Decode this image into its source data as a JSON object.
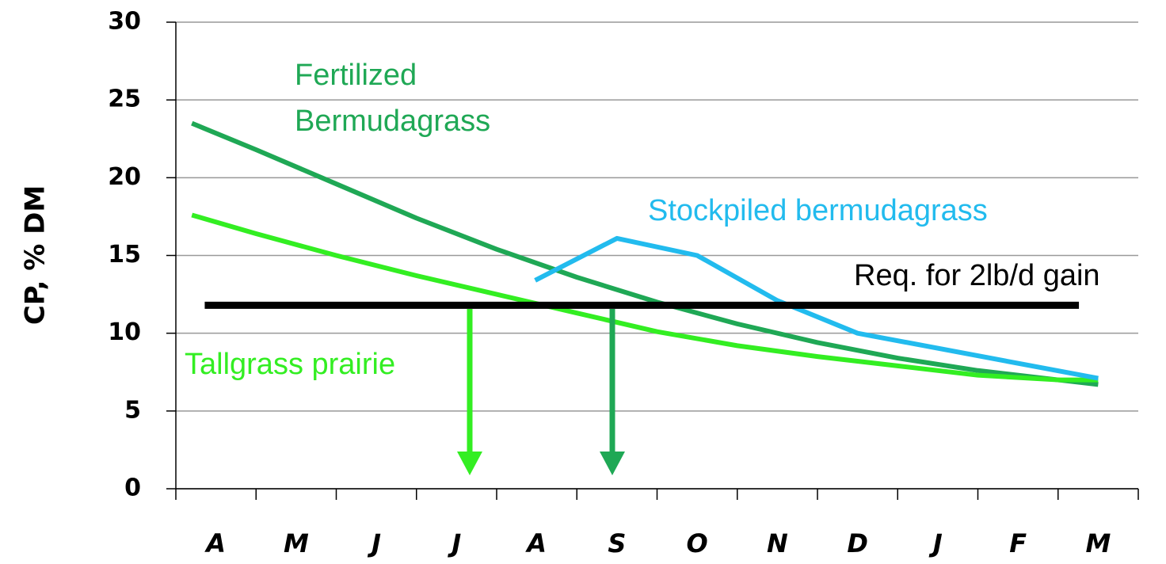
{
  "chart_data": {
    "type": "line",
    "y_label": "CP, % DM",
    "categories": [
      "A",
      "M",
      "J",
      "J",
      "A",
      "S",
      "O",
      "N",
      "D",
      "J",
      "F",
      "M"
    ],
    "xlim": [
      0,
      12
    ],
    "ylim": [
      0,
      30
    ],
    "yticks": [
      0,
      5,
      10,
      15,
      20,
      25,
      30
    ],
    "grid": true,
    "series": [
      {
        "color": "#1fa855",
        "x": [
          0.2,
          1,
          2,
          3,
          4,
          5,
          6,
          7,
          8,
          9,
          10,
          11,
          11.5
        ],
        "values": [
          23.5,
          21.8,
          19.6,
          17.4,
          15.4,
          13.6,
          12.0,
          10.6,
          9.4,
          8.4,
          7.6,
          7.0,
          6.7
        ]
      },
      {
        "color": "#33ee22",
        "x": [
          0.2,
          1,
          2,
          3,
          4,
          5,
          6,
          7,
          8,
          9,
          10,
          11,
          11.5
        ],
        "values": [
          17.6,
          16.4,
          15.0,
          13.7,
          12.5,
          11.3,
          10.1,
          9.2,
          8.5,
          7.9,
          7.3,
          7.0,
          7.0
        ]
      },
      {
        "color": "#22bbee",
        "x": [
          4.48,
          5.5,
          6.5,
          7.5,
          8.5,
          11.5
        ],
        "values": [
          13.4,
          16.1,
          15.0,
          12.1,
          10.0,
          7.1
        ]
      },
      {
        "color": "#000000",
        "x": [
          0.36,
          11.26
        ],
        "values": [
          11.8,
          11.8
        ]
      }
    ],
    "annotations": [
      {
        "text": "Fertilized",
        "color": "#1fa855"
      },
      {
        "text": "Bermudagrass",
        "color": "#1fa855"
      },
      {
        "text": "Stockpiled bermudagrass",
        "color": "#22bbee"
      },
      {
        "text": "Req. for 2lb/d gain",
        "color": "#000000"
      },
      {
        "text": "Tallgrass prairie",
        "color": "#33ee22"
      }
    ]
  }
}
